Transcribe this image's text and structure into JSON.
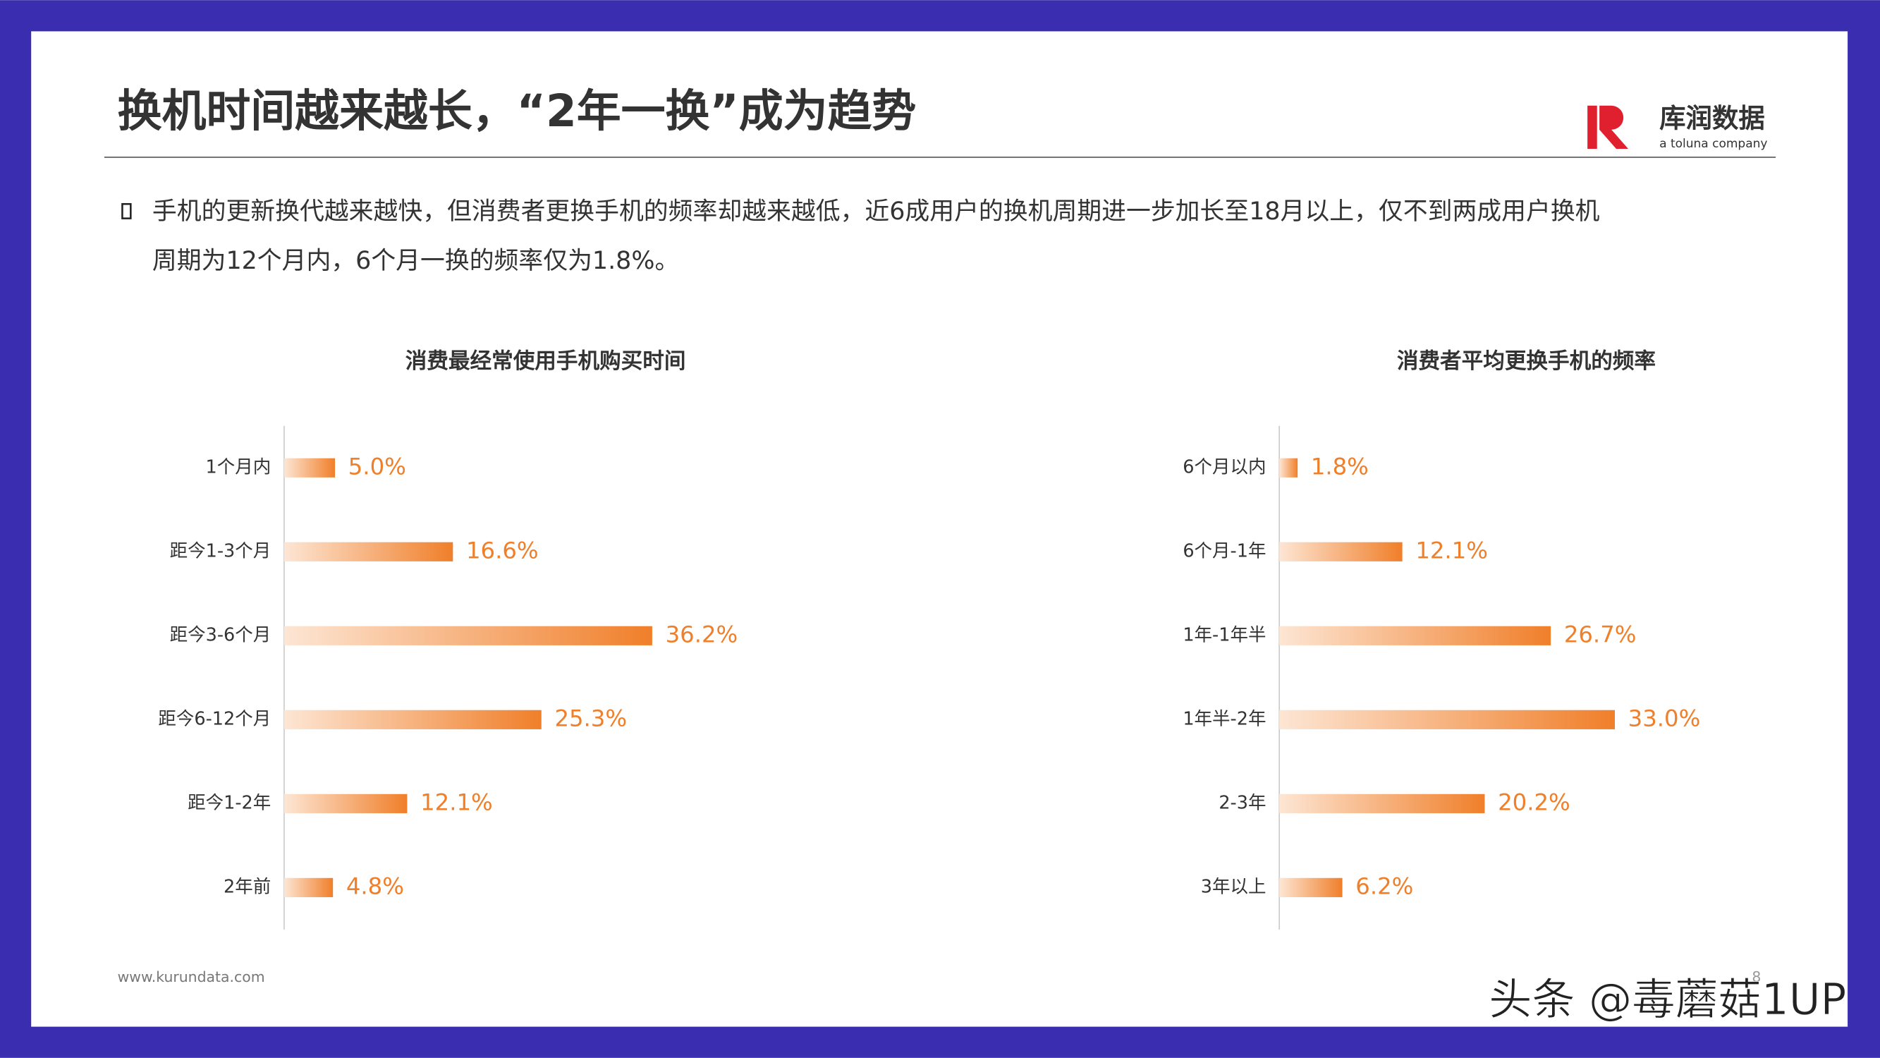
{
  "header": {
    "title": "换机时间越来越长，“2年一换”成为趋势",
    "logo_name": "库润数据",
    "logo_sub": "a toluna company"
  },
  "bullet": {
    "lines": [
      "手机的更新换代越来越快，但消费者更换手机的频率却越来越低，近6成用户的换机周期进一步加长至18月以上，仅不到两成用户换机",
      "周期为12个月内，6个月一换的频率仅为1.8%。"
    ]
  },
  "chart_data": [
    {
      "type": "bar",
      "orientation": "horizontal",
      "title": "消费最经常使用手机购买时间",
      "color": "#f07f2a",
      "categories": [
        "1个月内",
        "距今1-3个月",
        "距今3-6个月",
        "距今6-12个月",
        "距今1-2年",
        "2年前"
      ],
      "values": [
        5.0,
        16.6,
        36.2,
        25.3,
        12.1,
        4.8
      ],
      "value_labels": [
        "5.0%",
        "16.6%",
        "36.2%",
        "25.3%",
        "12.1%",
        "4.8%"
      ]
    },
    {
      "type": "bar",
      "orientation": "horizontal",
      "title": "消费者平均更换手机的频率",
      "color": "#f07f2a",
      "categories": [
        "6个月以内",
        "6个月-1年",
        "1年-1年半",
        "1年半-2年",
        "2-3年",
        "3年以上"
      ],
      "values": [
        1.8,
        12.1,
        26.7,
        33.0,
        20.2,
        6.2
      ],
      "value_labels": [
        "1.8%",
        "12.1%",
        "26.7%",
        "33.0%",
        "20.2%",
        "6.2%"
      ]
    }
  ],
  "footer": {
    "url": "www.kurundata.com",
    "page": "8",
    "watermark": "头条 @毒蘑菇1UP"
  }
}
